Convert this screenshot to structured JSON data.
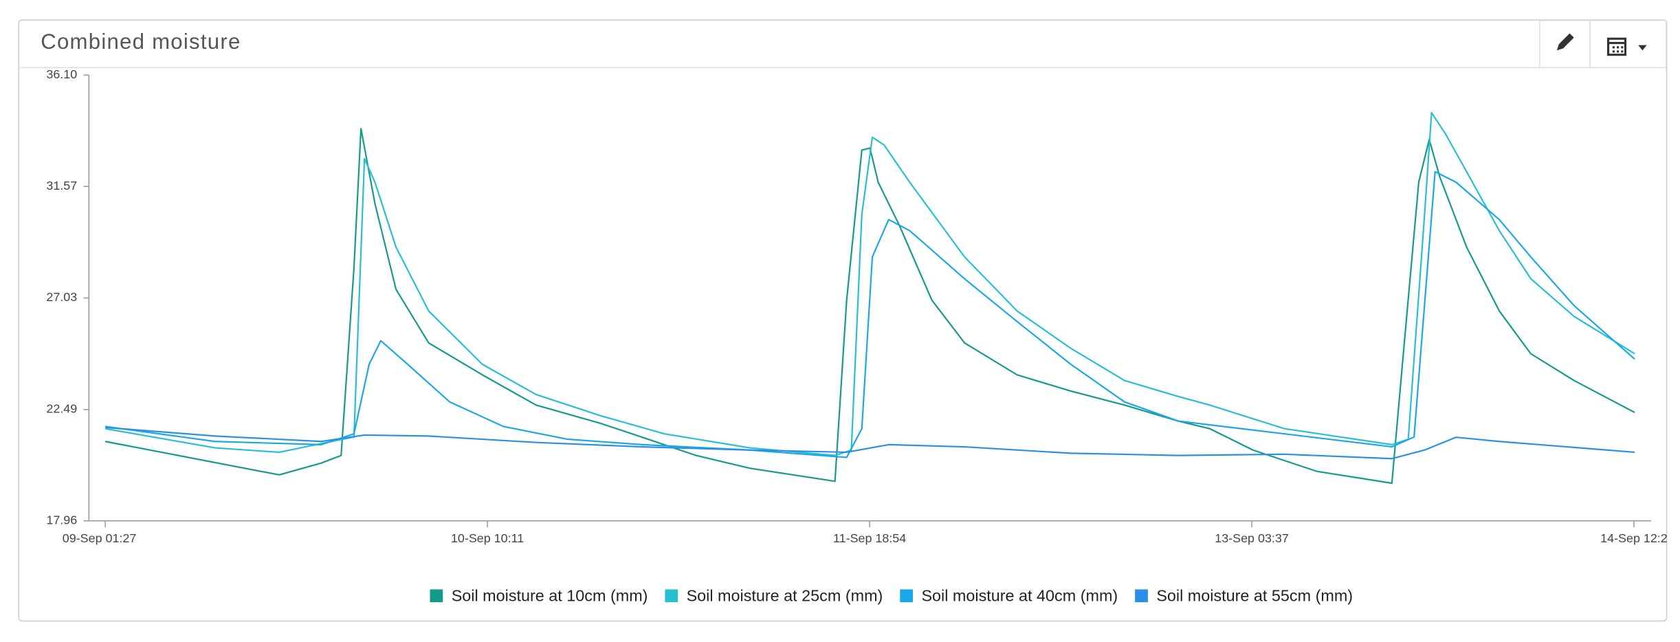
{
  "chart_data": {
    "type": "line",
    "title": "Combined moisture",
    "xlim": [
      -1.4,
      132.4
    ],
    "xticks": [
      {
        "value": 0,
        "label": "09-Sep 01:27"
      },
      {
        "value": 32.73,
        "label": "10-Sep 10:11"
      },
      {
        "value": 65.47,
        "label": "11-Sep 18:54"
      },
      {
        "value": 98.2,
        "label": "13-Sep 03:37"
      },
      {
        "value": 130.93,
        "label": "14-Sep 12:2"
      }
    ],
    "ylim": [
      17.96,
      36.1
    ],
    "yticks": [
      17.96,
      22.49,
      27.03,
      31.57,
      {
        "value": 36.1,
        "label": "36.10"
      }
    ],
    "series": [
      {
        "name": "Soil moisture at 10cm (mm)",
        "color": "#139a8a",
        "x": [
          0,
          14.9,
          18.5,
          20.2,
          21.3,
          21.9,
          23.1,
          24.9,
          27.7,
          32.3,
          36.9,
          42.4,
          46.0,
          50.6,
          55.2,
          62.5,
          63.5,
          64.8,
          65.5,
          66.2,
          68.0,
          70.8,
          73.6,
          78.1,
          82.7,
          87.3,
          91.9,
          94.6,
          98.3,
          103.8,
          110.2,
          111.1,
          112.5,
          113.4,
          114.3,
          116.6,
          119.4,
          122.1,
          125.8,
          131.0
        ],
        "values": [
          21.19,
          19.83,
          20.31,
          20.62,
          28.25,
          33.92,
          30.87,
          27.38,
          25.2,
          23.9,
          22.67,
          21.93,
          21.36,
          20.62,
          20.1,
          19.57,
          26.94,
          33.05,
          33.13,
          31.74,
          30.0,
          26.94,
          25.2,
          23.9,
          23.24,
          22.67,
          22.02,
          21.71,
          20.84,
          19.97,
          19.49,
          24.33,
          31.74,
          33.48,
          31.96,
          29.1,
          26.5,
          24.76,
          23.67,
          22.37
        ]
      },
      {
        "name": "Soil moisture at 25cm (mm)",
        "color": "#26bfd2",
        "x": [
          0,
          9.4,
          14.9,
          19.4,
          21.3,
          22.2,
          23.1,
          24.9,
          27.7,
          32.3,
          36.9,
          42.4,
          47.9,
          55.2,
          62.5,
          63.9,
          64.8,
          65.7,
          66.7,
          68.9,
          73.6,
          78.1,
          82.7,
          87.3,
          91.9,
          94.6,
          101.0,
          110.2,
          111.6,
          113.0,
          113.6,
          114.8,
          116.6,
          119.4,
          122.1,
          125.8,
          131.0
        ],
        "values": [
          21.71,
          20.93,
          20.75,
          21.19,
          21.37,
          32.7,
          31.74,
          29.1,
          26.5,
          24.33,
          23.1,
          22.24,
          21.5,
          20.93,
          20.62,
          20.84,
          30.43,
          33.57,
          33.26,
          31.74,
          28.7,
          26.5,
          24.98,
          23.67,
          23.02,
          22.67,
          21.71,
          21.06,
          21.28,
          30.43,
          34.57,
          33.7,
          32.17,
          29.77,
          27.81,
          26.28,
          24.76
        ]
      },
      {
        "name": "Soil moisture at 40cm (mm)",
        "color": "#19a7e8",
        "x": [
          0,
          9.4,
          18.5,
          21.3,
          22.6,
          23.6,
          25.9,
          29.5,
          34.1,
          39.6,
          46.0,
          55.2,
          63.5,
          64.8,
          65.7,
          67.1,
          68.9,
          73.6,
          78.1,
          82.7,
          87.3,
          91.9,
          101.0,
          110.2,
          112.1,
          113.9,
          115.7,
          119.4,
          122.1,
          125.8,
          131.0
        ],
        "values": [
          21.8,
          21.19,
          21.06,
          21.5,
          24.33,
          25.29,
          24.33,
          22.8,
          21.8,
          21.28,
          21.06,
          20.84,
          20.54,
          21.71,
          28.7,
          30.22,
          29.77,
          27.81,
          26.07,
          24.33,
          22.8,
          22.02,
          21.5,
          20.97,
          21.37,
          32.17,
          31.74,
          30.22,
          28.7,
          26.72,
          24.54
        ]
      },
      {
        "name": "Soil moisture at 55cm (mm)",
        "color": "#2a8fe6",
        "x": [
          0,
          9.4,
          18.5,
          22.2,
          27.7,
          36.9,
          46.0,
          55.2,
          63.5,
          67.1,
          73.6,
          82.7,
          91.9,
          101.0,
          110.2,
          113.0,
          115.7,
          119.4,
          131.0
        ],
        "values": [
          21.76,
          21.41,
          21.19,
          21.45,
          21.41,
          21.15,
          20.97,
          20.84,
          20.75,
          21.06,
          20.97,
          20.71,
          20.62,
          20.67,
          20.49,
          20.84,
          21.36,
          21.19,
          20.75
        ]
      }
    ]
  }
}
